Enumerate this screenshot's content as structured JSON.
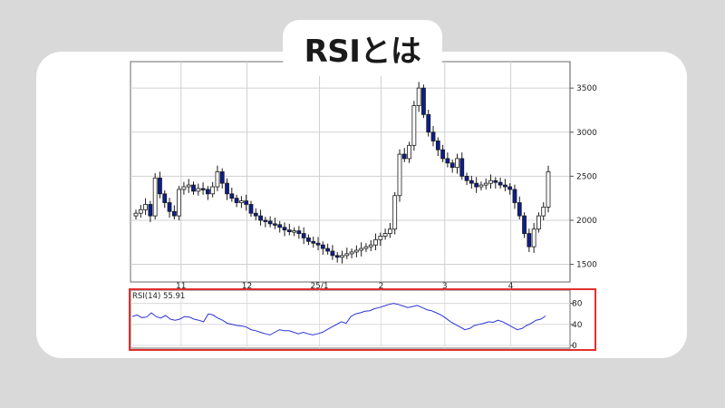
{
  "header": {
    "title": "RSIとは"
  },
  "colors": {
    "background": "#d9d9d9",
    "card": "#ffffff",
    "bull_candle": "#ffffff",
    "bear_candle": "#0b1f8f",
    "rsi_line": "#2b33d6",
    "highlight_box": "#e03030",
    "zero_label": "#e05010"
  },
  "chart_data": [
    {
      "type": "candlestick",
      "title": "",
      "x_tick_labels": [
        "11",
        "12",
        "25/1",
        "2",
        "3",
        "4"
      ],
      "y_tick_labels": [
        "3500",
        "3000",
        "2500",
        "2000",
        "1500"
      ],
      "ylim": [
        1300,
        3800
      ],
      "grid": true,
      "series": [
        {
          "values": [
            2080,
            2120,
            2180,
            2050,
            2480,
            2300,
            2200,
            2100,
            2050,
            2350,
            2380,
            2400,
            2330,
            2360,
            2350,
            2300,
            2380,
            2550,
            2420,
            2300,
            2250,
            2200,
            2220,
            2180,
            2080,
            2050,
            2000,
            1990,
            1960,
            1950,
            1920,
            1890,
            1870,
            1880,
            1850,
            1800,
            1760,
            1740,
            1720,
            1680,
            1650,
            1600,
            1580,
            1600,
            1620,
            1640,
            1660,
            1680,
            1700,
            1720,
            1780,
            1820,
            1850,
            1900,
            2280,
            2750,
            2700,
            2850,
            3300,
            3500,
            3200,
            3000,
            2900,
            2800,
            2700,
            2650,
            2600,
            2700,
            2500,
            2450,
            2420,
            2380,
            2400,
            2420,
            2450,
            2430,
            2400,
            2380,
            2350,
            2200,
            2050,
            1850,
            1700,
            1900,
            2050,
            2150,
            2550
          ]
        }
      ]
    },
    {
      "type": "line",
      "title": "",
      "indicator_label": "RSI(14)",
      "indicator_value": "55.91",
      "y_tick_labels": [
        "80",
        "40",
        "0"
      ],
      "ylim": [
        0,
        100
      ],
      "series": [
        {
          "values": [
            55,
            58,
            53,
            54,
            62,
            55,
            52,
            57,
            50,
            48,
            50,
            55,
            54,
            50,
            48,
            45,
            60,
            58,
            52,
            48,
            42,
            40,
            38,
            37,
            35,
            30,
            28,
            25,
            22,
            20,
            25,
            30,
            28,
            28,
            25,
            22,
            25,
            22,
            20,
            22,
            25,
            30,
            35,
            40,
            45,
            42,
            55,
            60,
            62,
            65,
            66,
            70,
            72,
            75,
            78,
            80,
            78,
            75,
            72,
            74,
            76,
            72,
            68,
            66,
            62,
            58,
            52,
            45,
            40,
            35,
            30,
            32,
            38,
            40,
            42,
            45,
            44,
            48,
            45,
            40,
            35,
            30,
            32,
            38,
            42,
            48,
            50,
            56
          ]
        }
      ]
    }
  ]
}
